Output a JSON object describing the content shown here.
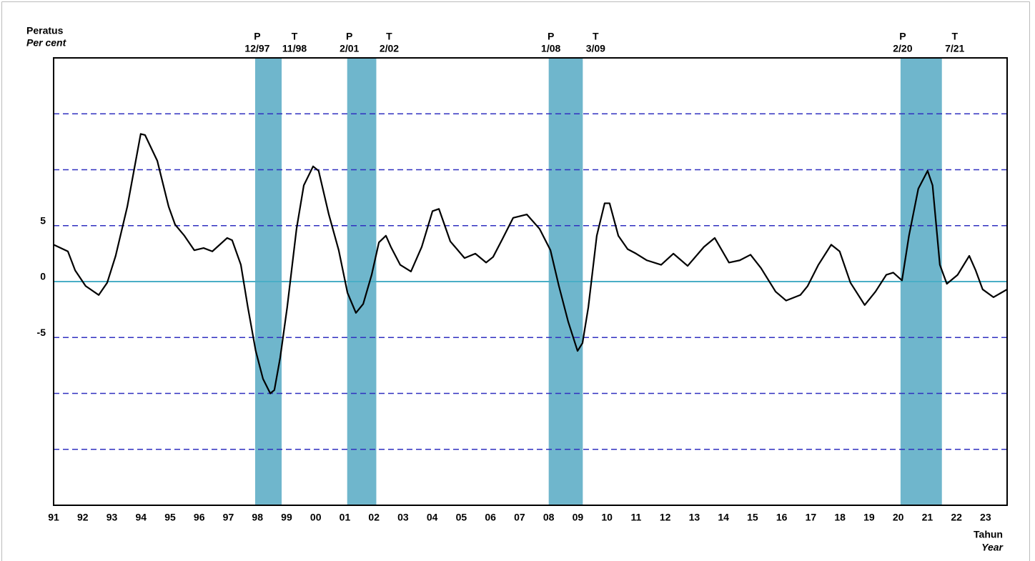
{
  "chart_data": {
    "type": "line",
    "y_label": "Peratus",
    "y_label_en": "Per cent",
    "x_label": "Tahun",
    "x_label_en": "Year",
    "xlim": [
      1991,
      2023.74
    ],
    "ylim": [
      -20,
      20
    ],
    "yticks": [
      -5,
      0,
      5
    ],
    "grid_values": [
      -15,
      -10,
      -5,
      5,
      10,
      15
    ],
    "grid_color": "#3030c0",
    "reference_line": {
      "value": 0,
      "color": "#4aaec6"
    },
    "band_color": "#6fb6cc",
    "color": "#000000",
    "xticks": [
      {
        "value": 1991,
        "label": "91"
      },
      {
        "value": 1992,
        "label": "92"
      },
      {
        "value": 1993,
        "label": "93"
      },
      {
        "value": 1994,
        "label": "94"
      },
      {
        "value": 1995,
        "label": "95"
      },
      {
        "value": 1996,
        "label": "96"
      },
      {
        "value": 1997,
        "label": "97"
      },
      {
        "value": 1998,
        "label": "98"
      },
      {
        "value": 1999,
        "label": "99"
      },
      {
        "value": 2000,
        "label": "00"
      },
      {
        "value": 2001,
        "label": "01"
      },
      {
        "value": 2002,
        "label": "02"
      },
      {
        "value": 2003,
        "label": "03"
      },
      {
        "value": 2004,
        "label": "04"
      },
      {
        "value": 2005,
        "label": "05"
      },
      {
        "value": 2006,
        "label": "06"
      },
      {
        "value": 2007,
        "label": "07"
      },
      {
        "value": 2008,
        "label": "08"
      },
      {
        "value": 2009,
        "label": "09"
      },
      {
        "value": 2010,
        "label": "10"
      },
      {
        "value": 2011,
        "label": "11"
      },
      {
        "value": 2012,
        "label": "12"
      },
      {
        "value": 2013,
        "label": "13"
      },
      {
        "value": 2014,
        "label": "14"
      },
      {
        "value": 2015,
        "label": "15"
      },
      {
        "value": 2016,
        "label": "16"
      },
      {
        "value": 2017,
        "label": "17"
      },
      {
        "value": 2018,
        "label": "18"
      },
      {
        "value": 2019,
        "label": "19"
      },
      {
        "value": 2020,
        "label": "20"
      },
      {
        "value": 2021,
        "label": "21"
      },
      {
        "value": 2022,
        "label": "22"
      },
      {
        "value": 2023,
        "label": "23"
      }
    ],
    "recessions": [
      {
        "peak": "P",
        "peak_date": "12/97",
        "trough": "T",
        "trough_date": "11/98",
        "start": 1997.92,
        "end": 1998.83
      },
      {
        "peak": "P",
        "peak_date": "2/01",
        "trough": "T",
        "trough_date": "2/02",
        "start": 2001.08,
        "end": 2002.08
      },
      {
        "peak": "P",
        "peak_date": "1/08",
        "trough": "T",
        "trough_date": "3/09",
        "start": 2008.0,
        "end": 2009.17
      },
      {
        "peak": "P",
        "peak_date": "2/20",
        "trough": "T",
        "trough_date": "7/21",
        "start": 2020.08,
        "end": 2021.5
      }
    ],
    "x": [
      1991.0,
      1991.49,
      1991.74,
      1992.1,
      1992.55,
      1992.84,
      1993.13,
      1993.53,
      1993.99,
      1994.14,
      1994.56,
      1994.95,
      1995.17,
      1995.49,
      1995.83,
      1996.15,
      1996.45,
      1996.96,
      1997.13,
      1997.43,
      1997.67,
      1997.94,
      1998.19,
      1998.44,
      1998.58,
      1998.78,
      1999.02,
      1999.34,
      1999.59,
      1999.91,
      2000.1,
      2000.45,
      2000.79,
      2001.09,
      2001.38,
      2001.63,
      2001.92,
      2002.17,
      2002.41,
      2002.58,
      2002.9,
      2003.27,
      2003.64,
      2004.01,
      2004.23,
      2004.62,
      2005.11,
      2005.48,
      2005.85,
      2006.09,
      2006.41,
      2006.78,
      2007.25,
      2007.69,
      2008.06,
      2008.35,
      2008.67,
      2008.99,
      2009.16,
      2009.36,
      2009.65,
      2009.92,
      2010.09,
      2010.39,
      2010.71,
      2011.0,
      2011.37,
      2011.86,
      2012.28,
      2012.77,
      2013.33,
      2013.7,
      2014.19,
      2014.56,
      2014.93,
      2015.29,
      2015.79,
      2016.15,
      2016.64,
      2016.89,
      2017.26,
      2017.7,
      2017.99,
      2018.36,
      2018.85,
      2019.22,
      2019.59,
      2019.83,
      2020.13,
      2020.37,
      2020.69,
      2021.01,
      2021.18,
      2021.43,
      2021.67,
      2022.04,
      2022.44,
      2022.66,
      2022.9,
      2023.27,
      2023.74
    ],
    "values": [
      3.3,
      2.7,
      1.0,
      -0.4,
      -1.2,
      -0.1,
      2.3,
      6.7,
      13.2,
      13.1,
      10.8,
      6.7,
      5.1,
      4.1,
      2.8,
      3.0,
      2.7,
      3.9,
      3.7,
      1.5,
      -2.3,
      -6.2,
      -8.7,
      -10.0,
      -9.7,
      -6.8,
      -2.3,
      4.7,
      8.6,
      10.3,
      9.9,
      6.0,
      2.8,
      -1.0,
      -2.8,
      -2.0,
      0.6,
      3.5,
      4.1,
      3.1,
      1.5,
      0.9,
      3.1,
      6.3,
      6.5,
      3.6,
      2.1,
      2.5,
      1.7,
      2.2,
      3.8,
      5.7,
      6.0,
      4.7,
      2.8,
      -0.4,
      -3.6,
      -6.2,
      -5.5,
      -2.3,
      4.1,
      7.0,
      7.0,
      4.1,
      2.9,
      2.5,
      1.9,
      1.5,
      2.5,
      1.4,
      3.1,
      3.9,
      1.7,
      1.9,
      2.4,
      1.2,
      -0.9,
      -1.7,
      -1.2,
      -0.4,
      1.5,
      3.3,
      2.7,
      -0.1,
      -2.1,
      -0.9,
      0.6,
      0.8,
      0.1,
      4.1,
      8.3,
      9.9,
      8.6,
      1.5,
      -0.2,
      0.6,
      2.3,
      1.0,
      -0.7,
      -1.4,
      -0.7
    ]
  }
}
